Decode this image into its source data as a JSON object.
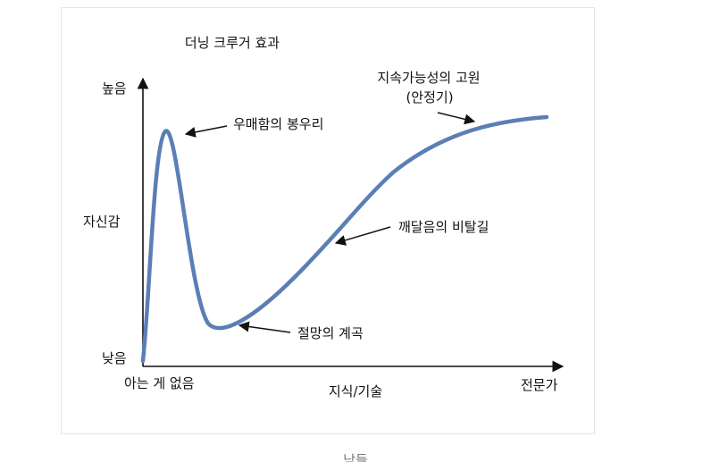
{
  "title": "더닝 크루거 효과",
  "axes": {
    "y_label": "자신감",
    "y_high": "높음",
    "y_low": "낮음",
    "x_label": "지식/기술",
    "x_start": "아는 게 없음",
    "x_end": "전문가"
  },
  "annotations": {
    "peak": "우매함의 봉우리",
    "valley": "절망의 계곡",
    "slope": "깨달음의 비탈길",
    "plateau_line1": "지속가능성의 고원",
    "plateau_line2": "(안정기)"
  },
  "caption": "남들",
  "colors": {
    "curve": "#5b7fb5",
    "text": "#111111",
    "axis": "#111111"
  }
}
